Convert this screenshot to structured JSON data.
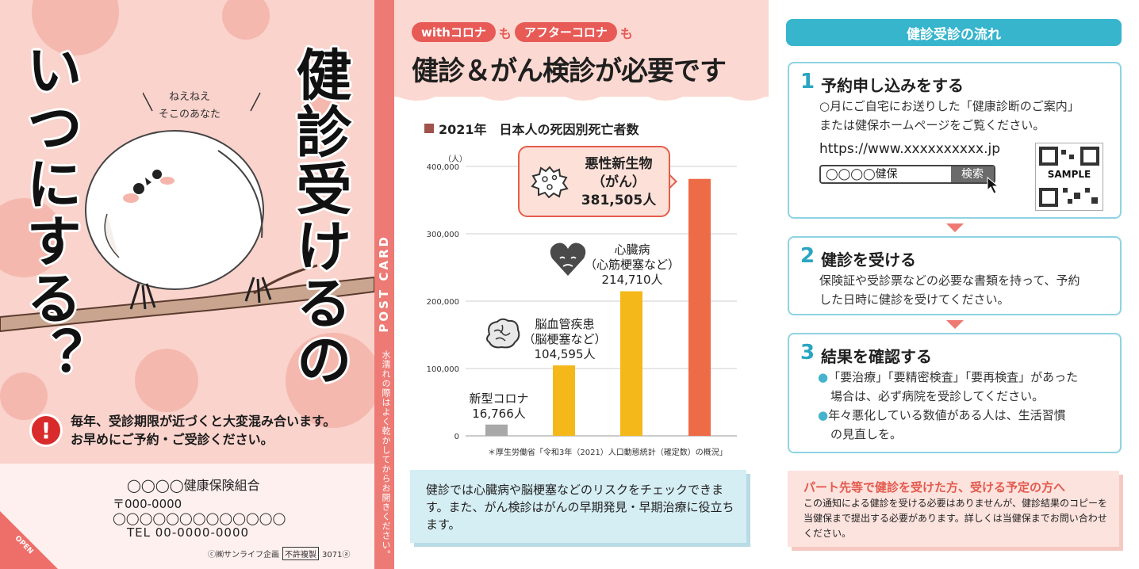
{
  "cover": {
    "title_left": "いつにする？",
    "title_right": "健診受けるの",
    "speech_line1": "ねえねえ",
    "speech_line2": "そこのあなた",
    "notice_line1": "毎年、受診期限が近づくと大変混み合います。",
    "notice_line2": "お早めにご予約・ご受診ください。",
    "address": {
      "org": "◯◯◯◯健康保険組合",
      "zip": "〒000-0000",
      "line": "◯◯◯◯◯◯◯◯◯◯◯◯◯",
      "tel": "TEL  00-0000-0000"
    },
    "copyright": "ⓒ㈱サンライフ企画",
    "no_copy": "不許複製",
    "code": "3071ⓐ",
    "open_label": "OPEN"
  },
  "strip": {
    "postcard": "POST CARD",
    "note": "水濡れの際はよく乾かしてからお開きください。"
  },
  "middle": {
    "pill1": "withコロナ",
    "pill_mo1": "も",
    "pill2": "アフターコロナ",
    "pill_mo2": "も",
    "headline": "健診＆がん検診が必要です",
    "chart_title": "2021年　日本人の死因別死亡者数",
    "source": "＊厚生労働省「令和3年（2021）人口動態統計（確定数）の概況」",
    "labels": {
      "cancer_l1": "悪性新生物",
      "cancer_l2": "（がん）",
      "cancer_l3": "381,505人",
      "heart_l1": "心臓病",
      "heart_l2": "（心筋梗塞など）",
      "heart_l3": "214,710人",
      "brain_l1": "脳血管疾患",
      "brain_l2": "（脳梗塞など）",
      "brain_l3": "104,595人",
      "covid_l1": "新型コロナ",
      "covid_l2": "16,766人"
    },
    "info": "健診では心臓病や脳梗塞などのリスクをチェックできます。また、がん検診はがんの早期発見・早期治療に役立ちます。"
  },
  "chart_data": {
    "type": "bar",
    "title": "2021年　日本人の死因別死亡者数",
    "ylabel": "（人）",
    "ylim": [
      0,
      400000
    ],
    "yticks": [
      0,
      100000,
      200000,
      300000,
      400000
    ],
    "ytick_labels": [
      "0",
      "100,000",
      "200,000",
      "300,000",
      "400,000"
    ],
    "categories": [
      "新型コロナ",
      "脳血管疾患",
      "心臓病",
      "悪性新生物"
    ],
    "values": [
      16766,
      104595,
      214710,
      381505
    ],
    "colors": [
      "#a8a8a8",
      "#f4b81a",
      "#f4b81a",
      "#ee6b47"
    ],
    "grid": true
  },
  "right": {
    "flow_header": "健診受診の流れ",
    "step1": {
      "num": "1",
      "title": "予約申し込みをする",
      "body1": "○月にご自宅にお送りした「健康診断のご案内」",
      "body2": "または健保ホームページをご覧ください。",
      "url": "https://www.xxxxxxxxxx.jp",
      "search_value": "◯◯◯◯健保",
      "search_button": "検索",
      "qr_label": "SAMPLE"
    },
    "step2": {
      "num": "2",
      "title": "健診を受ける",
      "body1": "保険証や受診票などの必要な書類を持って、予約",
      "body2": "した日時に健診を受けてください。"
    },
    "step3": {
      "num": "3",
      "title": "結果を確認する",
      "bullet": "●",
      "b1_line1": "「要治療」「要精密検査」「要再検査」があった",
      "b1_line2": "場合は、必ず病院を受診してください。",
      "b2_line1": "年々悪化している数値がある人は、生活習慣",
      "b2_line2": "の見直しを。"
    },
    "part": {
      "title": "パート先等で健診を受けた方、受ける予定の方へ",
      "body": "この通知による健診を受ける必要はありませんが、健診結果のコピーを当健保まで提出する必要があります。詳しくは当健保までお問い合わせください。"
    }
  },
  "colors": {
    "cover_bg": "#f9d3cc",
    "accent_red": "#e85a55",
    "teal": "#36b5cd",
    "cancer_bar": "#ee6b47",
    "yellow_bar": "#f4b81a",
    "grey_bar": "#a8a8a8"
  }
}
